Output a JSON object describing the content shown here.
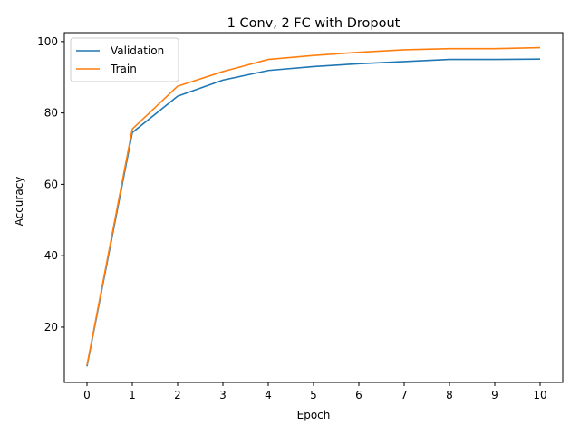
{
  "chart_data": {
    "type": "line",
    "title": "1 Conv, 2 FC with Dropout",
    "xlabel": "Epoch",
    "ylabel": "Accuracy",
    "x": [
      0,
      1,
      2,
      3,
      4,
      5,
      6,
      7,
      8,
      9,
      10
    ],
    "xlim": [
      -0.5,
      10.5
    ],
    "ylim": [
      4.5,
      102.5
    ],
    "xticks": [
      0,
      1,
      2,
      3,
      4,
      5,
      6,
      7,
      8,
      9,
      10
    ],
    "yticks": [
      20,
      40,
      60,
      80,
      100
    ],
    "grid": false,
    "legend_position": "top-left",
    "series": [
      {
        "name": "Validation",
        "color": "#1f77b4",
        "values": [
          9.0,
          74.5,
          84.7,
          89.2,
          91.9,
          93.0,
          93.8,
          94.4,
          95.0,
          95.0,
          95.1
        ]
      },
      {
        "name": "Train",
        "color": "#ff7f0e",
        "values": [
          9.3,
          75.5,
          87.5,
          91.6,
          95.0,
          96.1,
          97.0,
          97.7,
          98.0,
          98.0,
          98.3
        ]
      }
    ]
  }
}
